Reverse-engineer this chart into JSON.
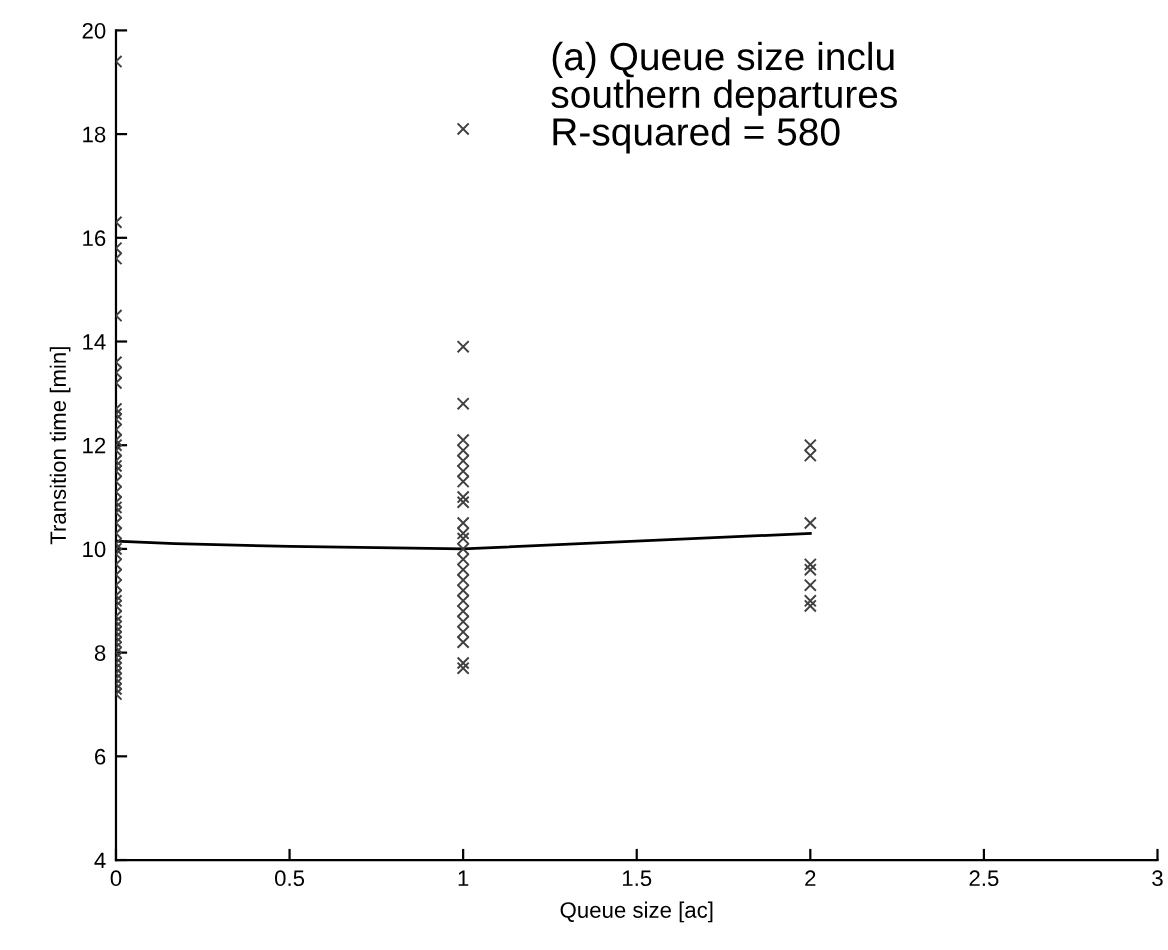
{
  "chart_data": {
    "type": "scatter",
    "xlabel": "Queue size [ac]",
    "ylabel": "Transition time [min]",
    "annotations": [
      "(a) Queue size inclu\nsouthern departures\nR-squared = 580"
    ],
    "xlim": [
      0,
      3
    ],
    "ylim": [
      4,
      20
    ],
    "xticks": [
      0,
      0.5,
      1,
      1.5,
      2,
      2.5,
      3
    ],
    "yticks": [
      4,
      6,
      8,
      10,
      12,
      14,
      16,
      18,
      20
    ],
    "grid": false,
    "legend": false,
    "marker": "cross",
    "series": [
      {
        "color": "#404040",
        "x": [
          0,
          0,
          0,
          0,
          0,
          0,
          0,
          0,
          0,
          0,
          0,
          0,
          0,
          0,
          0,
          0,
          0,
          0,
          0,
          0,
          0,
          0,
          0,
          0,
          0,
          0,
          0,
          0,
          0,
          0,
          0,
          0,
          0,
          0,
          0,
          0,
          0,
          0,
          0,
          0,
          0,
          0,
          0,
          0,
          0,
          0,
          0,
          0,
          0,
          0
        ],
        "values": [
          19.4,
          16.3,
          15.8,
          15.6,
          14.5,
          13.6,
          13.4,
          13.2,
          12.7,
          12.6,
          12.5,
          12.3,
          12.1,
          12.0,
          11.9,
          11.7,
          11.5,
          11.3,
          11.1,
          10.9,
          10.7,
          10.5,
          10.3,
          10.1,
          9.9,
          9.7,
          9.5,
          9.3,
          9.1,
          8.9,
          8.7,
          8.5,
          8.4,
          8.3,
          8.2,
          8.1,
          8.0,
          7.9,
          7.8,
          7.7,
          7.6,
          7.5,
          7.4,
          7.3,
          7.2,
          11.6,
          10.8,
          10.0,
          9.0,
          8.6
        ]
      },
      {
        "color": "#404040",
        "x": [
          1,
          1,
          1,
          1,
          1,
          1,
          1,
          1,
          1,
          1,
          1,
          1,
          1,
          1,
          1,
          1,
          1,
          1,
          1,
          1,
          1,
          1,
          1,
          1,
          1
        ],
        "values": [
          18.1,
          13.9,
          12.8,
          12.1,
          11.9,
          11.7,
          11.5,
          11.3,
          11.0,
          10.9,
          10.5,
          10.3,
          10.2,
          10.0,
          9.8,
          9.6,
          9.4,
          9.2,
          9.0,
          8.8,
          8.6,
          8.4,
          8.2,
          7.8,
          7.7
        ]
      },
      {
        "color": "#404040",
        "x": [
          2,
          2,
          2,
          2,
          2,
          2,
          2,
          2
        ],
        "values": [
          12.0,
          11.8,
          10.5,
          9.7,
          9.6,
          9.3,
          9.0,
          8.9
        ]
      },
      {
        "type": "line",
        "marker": "none",
        "color": "#000000",
        "x": [
          0,
          0.17,
          0.5,
          1,
          2
        ],
        "values": [
          10.15,
          10.1,
          10.05,
          10.0,
          10.3
        ]
      }
    ]
  }
}
